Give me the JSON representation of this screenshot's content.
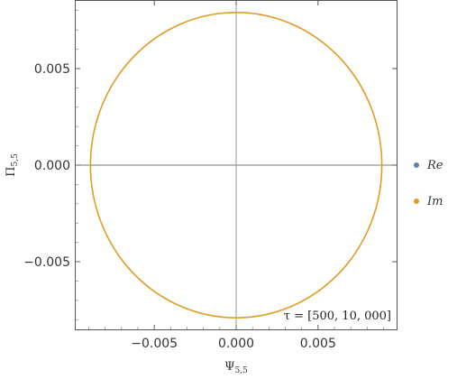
{
  "chart_data": {
    "type": "scatter",
    "title": "",
    "xlabel": "Ψ",
    "xlabel_sub": "5,5",
    "ylabel": "Π",
    "ylabel_sub": "5,5",
    "xlim": [
      -0.0098,
      0.0098
    ],
    "ylim": [
      -0.0085,
      0.0085
    ],
    "x_ticks": [
      -0.005,
      0.0,
      0.005
    ],
    "x_tick_labels": [
      "−0.005",
      "0.000",
      "0.005"
    ],
    "y_ticks": [
      -0.005,
      0.0,
      0.005
    ],
    "y_tick_labels": [
      "−0.005",
      "0.000",
      "0.005"
    ],
    "grid": false,
    "zero_lines": true,
    "legend_position": "right",
    "series": [
      {
        "name": "Re",
        "color": "#5e81b5",
        "points": []
      },
      {
        "name": "Im",
        "color": "#e19c24",
        "shape": "ellipse",
        "center": [
          0.0,
          0.0
        ],
        "radius_x": 0.0089,
        "radius_y": 0.0079
      }
    ],
    "annotation": "τ = [500, 10, 000]"
  }
}
